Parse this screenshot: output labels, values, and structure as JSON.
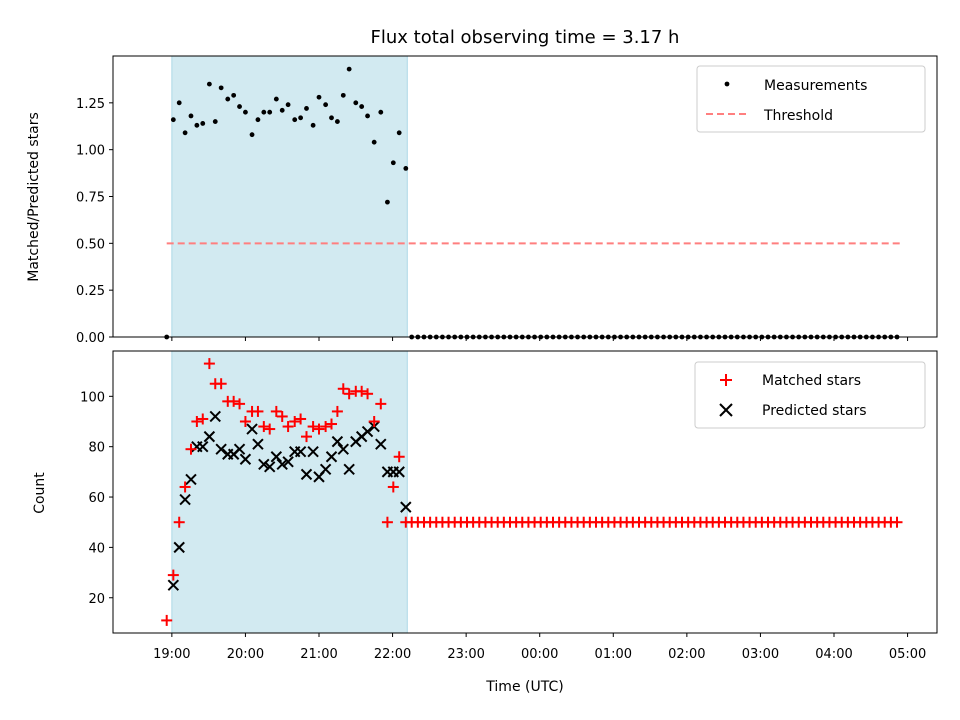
{
  "chart_data": {
    "type": "scatter",
    "title": "Flux total observing time = 3.17 h",
    "xlabel": "Time (UTC)",
    "x_tick_labels": [
      "19:00",
      "20:00",
      "21:00",
      "22:00",
      "23:00",
      "00:00",
      "01:00",
      "02:00",
      "03:00",
      "04:00",
      "05:00"
    ],
    "x_range_hours": [
      18.2,
      29.4
    ],
    "observing_window_hours": [
      19.0,
      22.2
    ],
    "observing_window_color": "#add8e6",
    "top_panel": {
      "ylabel": "Matched/Predicted stars",
      "ylim": [
        0,
        1.5
      ],
      "yticks": [
        0.0,
        0.25,
        0.5,
        0.75,
        1.0,
        1.25
      ],
      "ytick_labels": [
        "0.00",
        "0.25",
        "0.50",
        "0.75",
        "1.00",
        "1.25"
      ],
      "threshold": {
        "name": "Threshold",
        "value": 0.5,
        "x_from": 18.93,
        "x_to": 28.93,
        "color": "#ff7f7f"
      },
      "measurements": {
        "name": "Measurements",
        "color": "#000000",
        "x": [
          18.93,
          19.02,
          19.1,
          19.18,
          19.26,
          19.34,
          19.42,
          19.51,
          19.59,
          19.67,
          19.76,
          19.84,
          19.92,
          20.0,
          20.09,
          20.17,
          20.25,
          20.33,
          20.42,
          20.5,
          20.58,
          20.67,
          20.75,
          20.83,
          20.92,
          21.0,
          21.09,
          21.17,
          21.25,
          21.33,
          21.41,
          21.5,
          21.58,
          21.66,
          21.75,
          21.84,
          21.93,
          22.01,
          22.09,
          22.18
        ],
        "y": [
          0.0,
          1.16,
          1.25,
          1.09,
          1.18,
          1.13,
          1.14,
          1.35,
          1.15,
          1.33,
          1.27,
          1.29,
          1.23,
          1.2,
          1.08,
          1.16,
          1.2,
          1.2,
          1.27,
          1.21,
          1.24,
          1.16,
          1.17,
          1.22,
          1.13,
          1.28,
          1.24,
          1.17,
          1.15,
          1.29,
          1.43,
          1.25,
          1.23,
          1.18,
          1.04,
          1.2,
          0.72,
          0.93,
          1.09,
          0.9
        ],
        "zero_tail": {
          "x_start": 22.26,
          "x_end": 28.92,
          "step": 0.0835,
          "value": 0
        }
      }
    },
    "bottom_panel": {
      "ylabel": "Count",
      "ylim": [
        6,
        118
      ],
      "yticks": [
        20,
        40,
        60,
        80,
        100
      ],
      "ytick_labels": [
        "20",
        "40",
        "60",
        "80",
        "100"
      ],
      "series": [
        {
          "name": "Matched stars",
          "marker": "+",
          "color": "#ff0000",
          "x": [
            18.93,
            19.02,
            19.1,
            19.18,
            19.26,
            19.34,
            19.42,
            19.51,
            19.59,
            19.67,
            19.76,
            19.84,
            19.92,
            20.0,
            20.09,
            20.17,
            20.25,
            20.33,
            20.42,
            20.5,
            20.58,
            20.67,
            20.75,
            20.83,
            20.92,
            21.0,
            21.09,
            21.17,
            21.25,
            21.33,
            21.41,
            21.5,
            21.58,
            21.66,
            21.75,
            21.84,
            21.93,
            22.01,
            22.09,
            22.18
          ],
          "y": [
            11,
            29,
            50,
            64,
            79,
            90,
            91,
            113,
            105,
            105,
            98,
            98,
            97,
            90,
            94,
            94,
            88,
            87,
            94,
            92,
            88,
            90,
            91,
            84,
            88,
            87,
            88,
            89,
            94,
            103,
            101,
            102,
            102,
            101,
            90,
            97,
            50,
            64,
            76,
            50
          ],
          "tail": {
            "x_start": 22.26,
            "x_end": 28.92,
            "step": 0.0835,
            "value": 50
          }
        },
        {
          "name": "Predicted stars",
          "marker": "x",
          "color": "#000000",
          "x": [
            19.02,
            19.1,
            19.18,
            19.26,
            19.34,
            19.42,
            19.51,
            19.59,
            19.67,
            19.76,
            19.84,
            19.92,
            20.0,
            20.09,
            20.17,
            20.25,
            20.33,
            20.42,
            20.5,
            20.58,
            20.67,
            20.75,
            20.83,
            20.92,
            21.0,
            21.09,
            21.17,
            21.25,
            21.33,
            21.41,
            21.5,
            21.58,
            21.66,
            21.75,
            21.84,
            21.93,
            22.01,
            22.09,
            22.18
          ],
          "y": [
            25,
            40,
            59,
            67,
            80,
            80,
            84,
            92,
            79,
            77,
            77,
            79,
            75,
            87,
            81,
            73,
            72,
            76,
            73,
            74,
            78,
            78,
            69,
            78,
            68,
            71,
            76,
            82,
            79,
            71,
            82,
            84,
            86,
            88,
            81,
            70,
            70,
            70,
            56
          ]
        }
      ]
    },
    "legend_top": [
      "Measurements",
      "Threshold"
    ],
    "legend_bottom": [
      "Matched stars",
      "Predicted stars"
    ]
  }
}
